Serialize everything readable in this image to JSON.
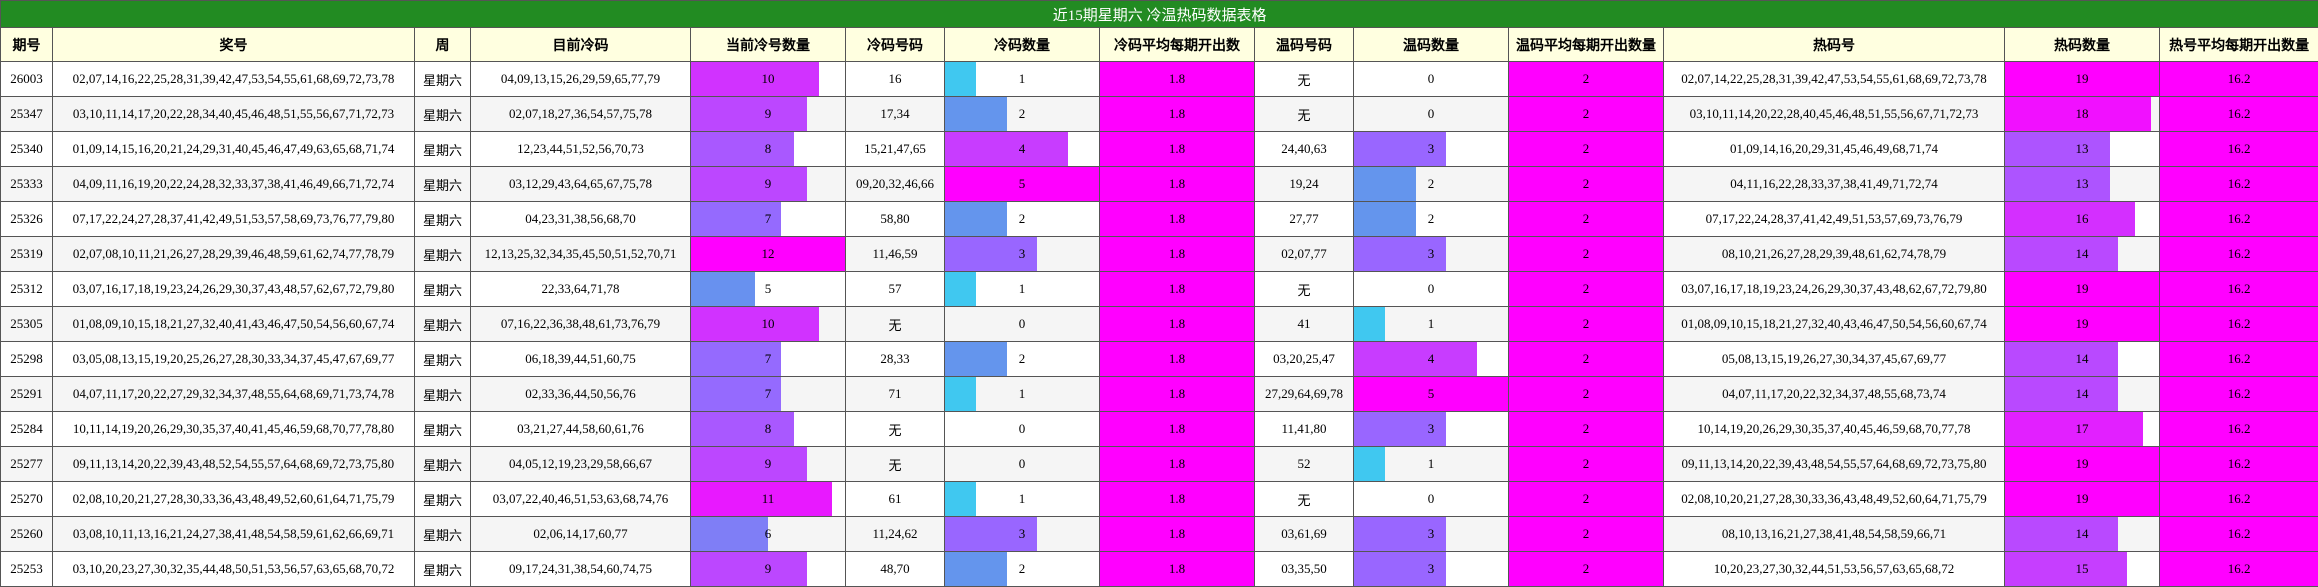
{
  "title": "近15期星期六 冷温热码数据表格",
  "table": {
    "headers": [
      "期号",
      "奖号",
      "周",
      "目前冷码",
      "当前冷号数量",
      "冷码号码",
      "冷码数量",
      "冷码平均每期开出数",
      "温码号码",
      "温码数量",
      "温码平均每期开出数量",
      "热码号",
      "热码数量",
      "热号平均每期开出数量"
    ],
    "rows": [
      [
        "26003",
        "02,07,14,16,22,25,28,31,39,42,47,53,54,55,61,68,69,72,73,78",
        "星期六",
        "04,09,13,15,26,29,59,65,77,79",
        10,
        "16",
        1,
        1.8,
        "无",
        0,
        2,
        "02,07,14,22,25,28,31,39,42,47,53,54,55,61,68,69,72,73,78",
        19,
        16.2
      ],
      [
        "25347",
        "03,10,11,14,17,20,22,28,34,40,45,46,48,51,55,56,67,71,72,73",
        "星期六",
        "02,07,18,27,36,54,57,75,78",
        9,
        "17,34",
        2,
        1.8,
        "无",
        0,
        2,
        "03,10,11,14,20,22,28,40,45,46,48,51,55,56,67,71,72,73",
        18,
        16.2
      ],
      [
        "25340",
        "01,09,14,15,16,20,21,24,29,31,40,45,46,47,49,63,65,68,71,74",
        "星期六",
        "12,23,44,51,52,56,70,73",
        8,
        "15,21,47,65",
        4,
        1.8,
        "24,40,63",
        3,
        2,
        "01,09,14,16,20,29,31,45,46,49,68,71,74",
        13,
        16.2
      ],
      [
        "25333",
        "04,09,11,16,19,20,22,24,28,32,33,37,38,41,46,49,66,71,72,74",
        "星期六",
        "03,12,29,43,64,65,67,75,78",
        9,
        "09,20,32,46,66",
        5,
        1.8,
        "19,24",
        2,
        2,
        "04,11,16,22,28,33,37,38,41,49,71,72,74",
        13,
        16.2
      ],
      [
        "25326",
        "07,17,22,24,27,28,37,41,42,49,51,53,57,58,69,73,76,77,79,80",
        "星期六",
        "04,23,31,38,56,68,70",
        7,
        "58,80",
        2,
        1.8,
        "27,77",
        2,
        2,
        "07,17,22,24,28,37,41,42,49,51,53,57,69,73,76,79",
        16,
        16.2
      ],
      [
        "25319",
        "02,07,08,10,11,21,26,27,28,29,39,46,48,59,61,62,74,77,78,79",
        "星期六",
        "12,13,25,32,34,35,45,50,51,52,70,71",
        12,
        "11,46,59",
        3,
        1.8,
        "02,07,77",
        3,
        2,
        "08,10,21,26,27,28,29,39,48,61,62,74,78,79",
        14,
        16.2
      ],
      [
        "25312",
        "03,07,16,17,18,19,23,24,26,29,30,37,43,48,57,62,67,72,79,80",
        "星期六",
        "22,33,64,71,78",
        5,
        "57",
        1,
        1.8,
        "无",
        0,
        2,
        "03,07,16,17,18,19,23,24,26,29,30,37,43,48,62,67,72,79,80",
        19,
        16.2
      ],
      [
        "25305",
        "01,08,09,10,15,18,21,27,32,40,41,43,46,47,50,54,56,60,67,74",
        "星期六",
        "07,16,22,36,38,48,61,73,76,79",
        10,
        "无",
        0,
        1.8,
        "41",
        1,
        2,
        "01,08,09,10,15,18,21,27,32,40,43,46,47,50,54,56,60,67,74",
        19,
        16.2
      ],
      [
        "25298",
        "03,05,08,13,15,19,20,25,26,27,28,30,33,34,37,45,47,67,69,77",
        "星期六",
        "06,18,39,44,51,60,75",
        7,
        "28,33",
        2,
        1.8,
        "03,20,25,47",
        4,
        2,
        "05,08,13,15,19,26,27,30,34,37,45,67,69,77",
        14,
        16.2
      ],
      [
        "25291",
        "04,07,11,17,20,22,27,29,32,34,37,48,55,64,68,69,71,73,74,78",
        "星期六",
        "02,33,36,44,50,56,76",
        7,
        "71",
        1,
        1.8,
        "27,29,64,69,78",
        5,
        2,
        "04,07,11,17,20,22,32,34,37,48,55,68,73,74",
        14,
        16.2
      ],
      [
        "25284",
        "10,11,14,19,20,26,29,30,35,37,40,41,45,46,59,68,70,77,78,80",
        "星期六",
        "03,21,27,44,58,60,61,76",
        8,
        "无",
        0,
        1.8,
        "11,41,80",
        3,
        2,
        "10,14,19,20,26,29,30,35,37,40,45,46,59,68,70,77,78",
        17,
        16.2
      ],
      [
        "25277",
        "09,11,13,14,20,22,39,43,48,52,54,55,57,64,68,69,72,73,75,80",
        "星期六",
        "04,05,12,19,23,29,58,66,67",
        9,
        "无",
        0,
        1.8,
        "52",
        1,
        2,
        "09,11,13,14,20,22,39,43,48,54,55,57,64,68,69,72,73,75,80",
        19,
        16.2
      ],
      [
        "25270",
        "02,08,10,20,21,27,28,30,33,36,43,48,49,52,60,61,64,71,75,79",
        "星期六",
        "03,07,22,40,46,51,53,63,68,74,76",
        11,
        "61",
        1,
        1.8,
        "无",
        0,
        2,
        "02,08,10,20,21,27,28,30,33,36,43,48,49,52,60,64,71,75,79",
        19,
        16.2
      ],
      [
        "25260",
        "03,08,10,11,13,16,21,24,27,38,41,48,54,58,59,61,62,66,69,71",
        "星期六",
        "02,06,14,17,60,77",
        6,
        "11,24,62",
        3,
        1.8,
        "03,61,69",
        3,
        2,
        "08,10,13,16,21,27,38,41,48,54,58,59,66,71",
        14,
        16.2
      ],
      [
        "25253",
        "03,10,20,23,27,30,32,35,44,48,50,51,53,56,57,63,65,68,70,72",
        "星期六",
        "09,17,24,31,38,54,60,74,75",
        9,
        "48,70",
        2,
        1.8,
        "03,35,50",
        3,
        2,
        "10,20,23,27,30,32,44,51,53,56,57,63,65,68,72",
        15,
        16.2
      ]
    ]
  }
}
